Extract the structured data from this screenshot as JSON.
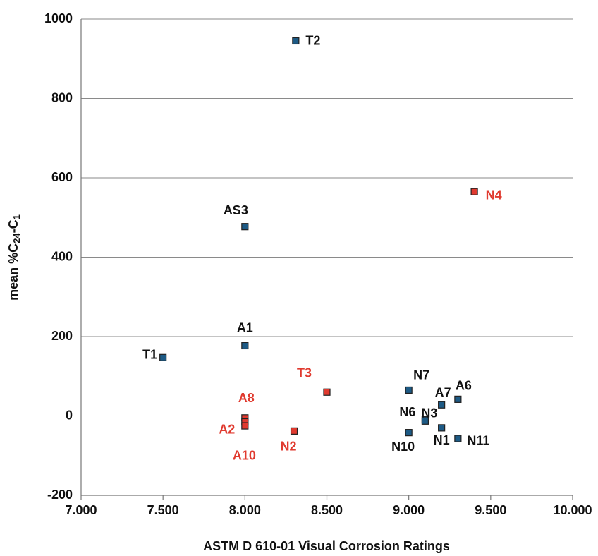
{
  "chart_data": {
    "type": "scatter",
    "x_label": "ASTM D 610-01 Visual Corrosion Ratings",
    "y_label_parts": [
      "mean %C",
      "24",
      "-C",
      "1"
    ],
    "labels": [
      "T2",
      "N4",
      "AS3",
      "A1",
      "T1",
      "T3",
      "A8",
      "A2",
      "A10",
      "N2",
      "N7",
      "N6",
      "N3",
      "A7",
      "A6",
      "N10",
      "N1",
      "N11"
    ],
    "x": [
      8.31,
      9.4,
      8.0,
      8.0,
      7.5,
      8.5,
      8.0,
      8.0,
      8.0,
      8.3,
      9.0,
      9.1,
      9.1,
      9.2,
      9.3,
      9.0,
      9.2,
      9.3
    ],
    "values": [
      945,
      565,
      477,
      177,
      147,
      60,
      -5,
      -15,
      -25,
      -38,
      65,
      -10,
      -13,
      28,
      42,
      -42,
      -30,
      -57
    ],
    "colors": [
      "#1d5a85",
      "#e03a2f",
      "#1d5a85",
      "#1d5a85",
      "#1d5a85",
      "#e03a2f",
      "#e03a2f",
      "#e03a2f",
      "#e03a2f",
      "#e03a2f",
      "#1d5a85",
      "#1d5a85",
      "#1d5a85",
      "#1d5a85",
      "#1d5a85",
      "#1d5a85",
      "#1d5a85",
      "#1d5a85"
    ],
    "xlim": [
      7,
      10
    ],
    "ylim": [
      -200,
      1000
    ],
    "xticks": [
      {
        "value": 7,
        "label": "7.000"
      },
      {
        "value": 7.5,
        "label": "7.500"
      },
      {
        "value": 8,
        "label": "8.000"
      },
      {
        "value": 8.5,
        "label": "8.500"
      },
      {
        "value": 9,
        "label": "9.000"
      },
      {
        "value": 9.5,
        "label": "9.500"
      },
      {
        "value": 10,
        "label": "10.000"
      }
    ],
    "yticks": [
      -200,
      0,
      200,
      400,
      600,
      800,
      1000
    ],
    "grid": true
  }
}
